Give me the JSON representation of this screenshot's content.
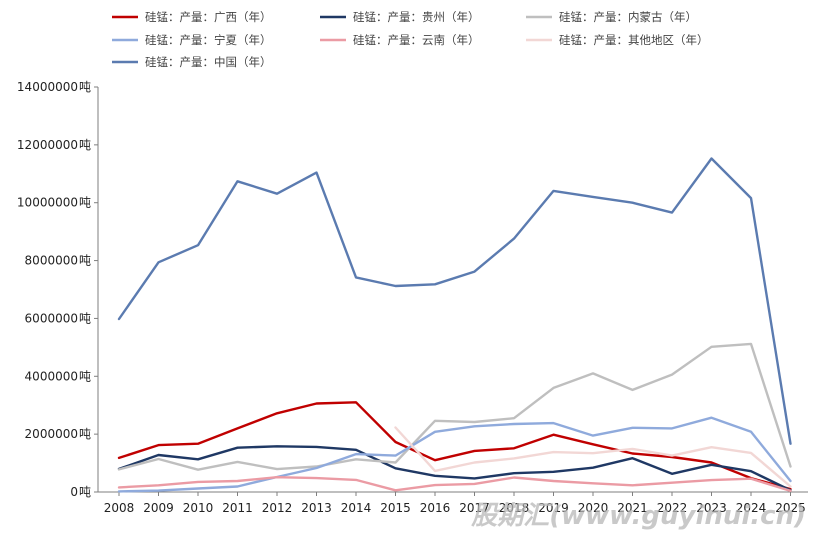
{
  "chart_data": {
    "type": "line",
    "title": "",
    "xlabel": "",
    "ylabel": "",
    "y_unit": "吨",
    "ylim": [
      0,
      14000000
    ],
    "yticks": [
      0,
      2000000,
      4000000,
      6000000,
      8000000,
      10000000,
      12000000,
      14000000
    ],
    "grid": false,
    "legend_position": "top",
    "categories": [
      "2008",
      "2009",
      "2010",
      "2011",
      "2012",
      "2013",
      "2014",
      "2015",
      "2016",
      "2017",
      "2018",
      "2019",
      "2020",
      "2021",
      "2022",
      "2023",
      "2024",
      "2025"
    ],
    "series": [
      {
        "name": "硅锰：产量：广西（年）",
        "color": "#c00000",
        "values": [
          1180000,
          1620000,
          1670000,
          2200000,
          2720000,
          3060000,
          3100000,
          1730000,
          1100000,
          1420000,
          1510000,
          1980000,
          1650000,
          1330000,
          1210000,
          1020000,
          480000,
          100000
        ]
      },
      {
        "name": "硅锰：产量：贵州（年）",
        "color": "#1f3864",
        "values": [
          800000,
          1280000,
          1130000,
          1530000,
          1580000,
          1560000,
          1460000,
          820000,
          560000,
          470000,
          650000,
          700000,
          840000,
          1170000,
          630000,
          940000,
          720000,
          60000
        ]
      },
      {
        "name": "硅锰：产量：内蒙古（年）",
        "color": "#bfbfbf",
        "values": [
          780000,
          1140000,
          770000,
          1040000,
          790000,
          880000,
          1130000,
          1020000,
          2460000,
          2420000,
          2550000,
          3600000,
          4100000,
          3530000,
          4060000,
          5020000,
          5120000,
          880000
        ]
      },
      {
        "name": "硅锰：产量：宁夏（年）",
        "color": "#8faadc",
        "values": [
          20000,
          50000,
          120000,
          190000,
          520000,
          830000,
          1310000,
          1260000,
          2080000,
          2270000,
          2350000,
          2380000,
          1950000,
          2220000,
          2200000,
          2570000,
          2080000,
          380000
        ]
      },
      {
        "name": "硅锰：产量：云南（年）",
        "color": "#eb9ba4",
        "values": [
          160000,
          230000,
          350000,
          380000,
          510000,
          480000,
          420000,
          60000,
          240000,
          280000,
          500000,
          380000,
          300000,
          230000,
          320000,
          410000,
          460000,
          40000
        ]
      },
      {
        "name": "硅锰：产量：其他地区（年）",
        "color": "#f2d7d5",
        "values": [
          null,
          null,
          null,
          null,
          null,
          null,
          null,
          2230000,
          730000,
          1020000,
          1160000,
          1380000,
          1340000,
          1490000,
          1260000,
          1550000,
          1350000,
          190000
        ]
      },
      {
        "name": "硅锰：产量：中国（年）",
        "color": "#5b7bb0",
        "values": [
          5980000,
          7940000,
          8530000,
          10740000,
          10310000,
          11040000,
          7420000,
          7120000,
          7180000,
          7620000,
          8760000,
          10410000,
          10200000,
          10000000,
          9660000,
          11530000,
          10160000,
          1670000
        ]
      }
    ]
  },
  "watermark": "股期汇(www.guyinui.cn)"
}
